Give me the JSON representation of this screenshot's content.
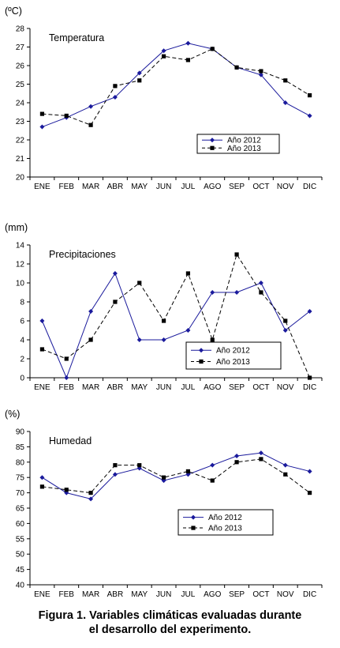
{
  "caption": {
    "line1": "Figura 1. Variables climáticas evaluadas durante",
    "line2": "el desarrollo del experimento."
  },
  "colors": {
    "series2012": "#1a1a9c",
    "series2013": "#000000",
    "axis": "#000000"
  },
  "chart_data": [
    {
      "type": "line",
      "title": "Temperatura",
      "ylabel": "(ºC)",
      "categories": [
        "ENE",
        "FEB",
        "MAR",
        "ABR",
        "MAY",
        "JUN",
        "JUL",
        "AGO",
        "SEP",
        "OCT",
        "NOV",
        "DIC"
      ],
      "ylim": [
        20,
        28
      ],
      "yticks": [
        20,
        21,
        22,
        23,
        24,
        25,
        26,
        27,
        28
      ],
      "grid": false,
      "legend": "bottom-right",
      "series": [
        {
          "name": "Año 2012",
          "marker": "diamond",
          "style": "solid",
          "values": [
            22.7,
            23.2,
            23.8,
            24.3,
            25.6,
            26.8,
            27.2,
            26.9,
            25.9,
            25.5,
            24.0,
            23.3
          ]
        },
        {
          "name": "Año 2013",
          "marker": "square",
          "style": "dashed",
          "values": [
            23.4,
            23.3,
            22.8,
            24.9,
            25.2,
            26.5,
            26.3,
            26.9,
            25.9,
            25.7,
            25.2,
            24.4
          ]
        }
      ]
    },
    {
      "type": "line",
      "title": "Precipitaciones",
      "ylabel": "(mm)",
      "categories": [
        "ENE",
        "FEB",
        "MAR",
        "ABR",
        "MAY",
        "JUN",
        "JUL",
        "AGO",
        "SEP",
        "OCT",
        "NOV",
        "DIC"
      ],
      "ylim": [
        0,
        14
      ],
      "yticks": [
        0,
        2,
        4,
        6,
        8,
        10,
        12,
        14
      ],
      "grid": false,
      "legend": "bottom-right",
      "series": [
        {
          "name": "Año 2012",
          "marker": "diamond",
          "style": "solid",
          "values": [
            6,
            0,
            7,
            11,
            4,
            4,
            5,
            9,
            9,
            10,
            5,
            7
          ]
        },
        {
          "name": "Año 2013",
          "marker": "square",
          "style": "dashed",
          "values": [
            3,
            2,
            4,
            8,
            10,
            6,
            11,
            4,
            13,
            9,
            6,
            0
          ]
        }
      ]
    },
    {
      "type": "line",
      "title": "Humedad",
      "ylabel": "(%)",
      "categories": [
        "ENE",
        "FEB",
        "MAR",
        "ABR",
        "MAY",
        "JUN",
        "JUL",
        "AGO",
        "SEP",
        "OCT",
        "NOV",
        "DIC"
      ],
      "ylim": [
        40,
        90
      ],
      "yticks": [
        40,
        45,
        50,
        55,
        60,
        65,
        70,
        75,
        80,
        85,
        90
      ],
      "grid": false,
      "legend": "center-right",
      "series": [
        {
          "name": "Año 2012",
          "marker": "diamond",
          "style": "solid",
          "values": [
            75,
            70,
            68,
            76,
            78,
            74,
            76,
            79,
            82,
            83,
            79,
            77
          ]
        },
        {
          "name": "Año 2013",
          "marker": "square",
          "style": "dashed",
          "values": [
            72,
            71,
            70,
            79,
            79,
            75,
            77,
            74,
            80,
            81,
            76,
            70
          ]
        }
      ]
    }
  ]
}
